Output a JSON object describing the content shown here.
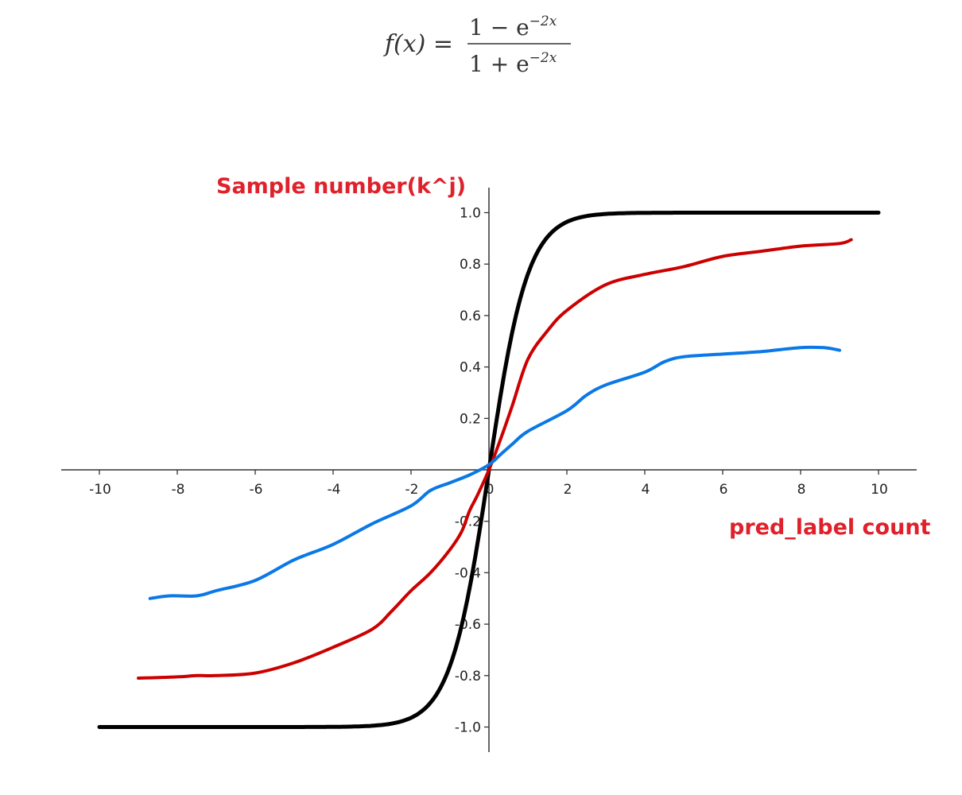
{
  "formula": {
    "lhs": "f(x) =",
    "numerator_base": "1 − e",
    "numerator_exp": "−2x",
    "denominator_base": "1 + e",
    "denominator_exp": "−2x"
  },
  "chart_data": {
    "type": "line",
    "title": "",
    "xlabel": "pred_label count",
    "ylabel": "Sample number(k^j)",
    "xlim": [
      -11,
      10.5
    ],
    "ylim": [
      -1.1,
      1.1
    ],
    "x_ticks": [
      -10,
      -8,
      -6,
      -4,
      -2,
      0,
      2,
      4,
      6,
      8,
      10
    ],
    "x_tick_labels": [
      "-10",
      "-8",
      "-6",
      "-4",
      "-2",
      "0",
      "2",
      "4",
      "6",
      "8",
      "10"
    ],
    "y_ticks": [
      1.0,
      0.8,
      0.6,
      0.4,
      0.2,
      -0.2,
      -0.4,
      -0.6,
      -0.8,
      -1.0
    ],
    "y_tick_labels": [
      "1.0",
      "0.8",
      "0.6",
      "0.4",
      "0.2",
      "-0.2",
      "-0.4",
      "-0.6",
      "-0.8",
      "-1.0"
    ],
    "grid": false,
    "series": [
      {
        "function": "tanh",
        "color": "#000000",
        "x_range": [
          -10,
          10
        ]
      },
      {
        "color": "#cc0000",
        "points": [
          [
            -9.0,
            -0.81
          ],
          [
            -8.0,
            -0.805
          ],
          [
            -7.5,
            -0.8
          ],
          [
            -7.0,
            -0.8
          ],
          [
            -6.0,
            -0.79
          ],
          [
            -5.0,
            -0.75
          ],
          [
            -4.0,
            -0.69
          ],
          [
            -3.0,
            -0.62
          ],
          [
            -2.5,
            -0.55
          ],
          [
            -2.0,
            -0.47
          ],
          [
            -1.5,
            -0.4
          ],
          [
            -1.0,
            -0.31
          ],
          [
            -0.7,
            -0.24
          ],
          [
            -0.5,
            -0.16
          ],
          [
            -0.3,
            -0.1
          ],
          [
            0.0,
            0.0
          ],
          [
            0.3,
            0.12
          ],
          [
            0.6,
            0.25
          ],
          [
            1.0,
            0.43
          ],
          [
            1.5,
            0.54
          ],
          [
            2.0,
            0.62
          ],
          [
            3.0,
            0.72
          ],
          [
            4.0,
            0.76
          ],
          [
            5.0,
            0.79
          ],
          [
            6.0,
            0.83
          ],
          [
            7.0,
            0.85
          ],
          [
            8.0,
            0.87
          ],
          [
            9.0,
            0.88
          ],
          [
            9.3,
            0.895
          ]
        ]
      },
      {
        "color": "#0a78e6",
        "points": [
          [
            -8.7,
            -0.5
          ],
          [
            -8.2,
            -0.49
          ],
          [
            -7.5,
            -0.49
          ],
          [
            -7.0,
            -0.47
          ],
          [
            -6.0,
            -0.43
          ],
          [
            -5.0,
            -0.35
          ],
          [
            -4.0,
            -0.29
          ],
          [
            -3.0,
            -0.21
          ],
          [
            -2.0,
            -0.14
          ],
          [
            -1.5,
            -0.08
          ],
          [
            -1.0,
            -0.05
          ],
          [
            -0.5,
            -0.02
          ],
          [
            0.0,
            0.02
          ],
          [
            0.3,
            0.06
          ],
          [
            0.6,
            0.1
          ],
          [
            1.0,
            0.15
          ],
          [
            2.0,
            0.23
          ],
          [
            2.5,
            0.29
          ],
          [
            3.0,
            0.33
          ],
          [
            4.0,
            0.38
          ],
          [
            4.5,
            0.42
          ],
          [
            5.0,
            0.44
          ],
          [
            6.0,
            0.45
          ],
          [
            7.0,
            0.46
          ],
          [
            8.0,
            0.475
          ],
          [
            8.6,
            0.475
          ],
          [
            9.0,
            0.465
          ]
        ]
      }
    ],
    "axis_color": "#333333",
    "annotation_color": "#e0202a"
  }
}
